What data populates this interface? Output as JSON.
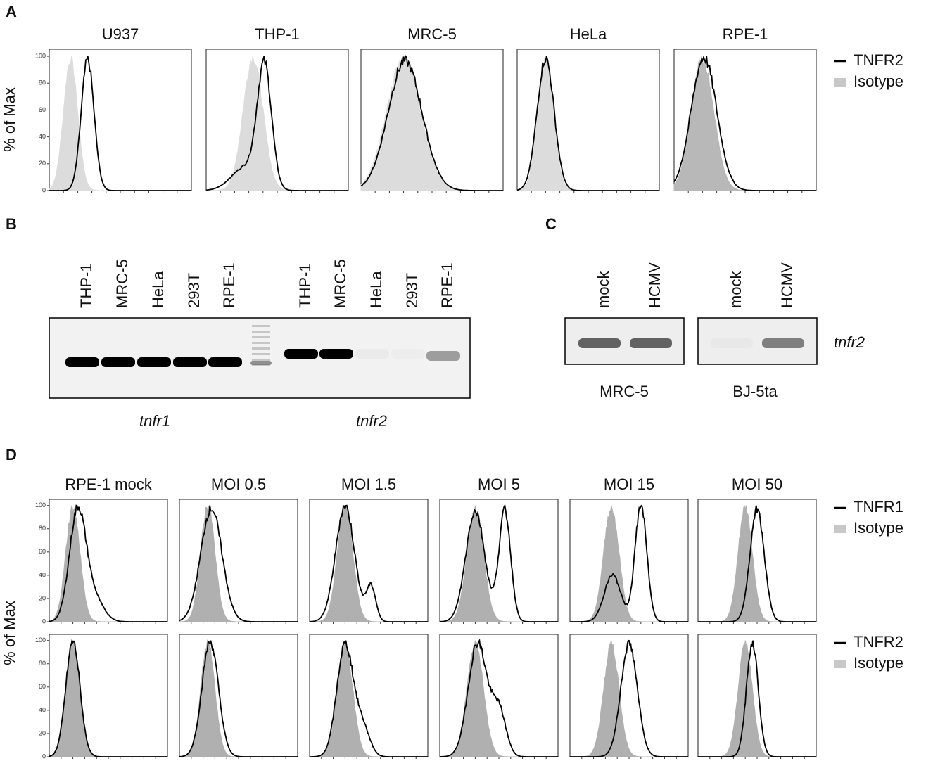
{
  "panel_a": {
    "label": "A",
    "y_axis_label": "% of Max",
    "yticks": [
      "0",
      "20",
      "40",
      "60",
      "80",
      "100"
    ],
    "panels": [
      "U937",
      "THP-1",
      "MRC-5",
      "HeLa",
      "RPE-1"
    ],
    "legend": [
      "TNFR2",
      "Isotype"
    ]
  },
  "panel_b": {
    "label": "B",
    "lanes": [
      "THP-1",
      "MRC-5",
      "HeLa",
      "293T",
      "RPE-1",
      "THP-1",
      "MRC-5",
      "HeLa",
      "293T",
      "RPE-1"
    ],
    "genes": [
      "tnfr1",
      "tnfr2"
    ]
  },
  "panel_c": {
    "label": "C",
    "lanes": [
      "mock",
      "HCMV",
      "mock",
      "HCMV"
    ],
    "cell_lines": [
      "MRC-5",
      "BJ-5ta"
    ],
    "gene": "tnfr2"
  },
  "panel_d": {
    "label": "D",
    "y_axis_label": "% of Max",
    "yticks": [
      "0",
      "20",
      "40",
      "60",
      "80",
      "100"
    ],
    "panels": [
      "RPE-1 mock",
      "MOI 0.5",
      "MOI 1.5",
      "MOI 5",
      "MOI 15",
      "MOI 50"
    ],
    "legend_row1": [
      "TNFR1",
      "Isotype"
    ],
    "legend_row2": [
      "TNFR2",
      "Isotype"
    ]
  }
}
